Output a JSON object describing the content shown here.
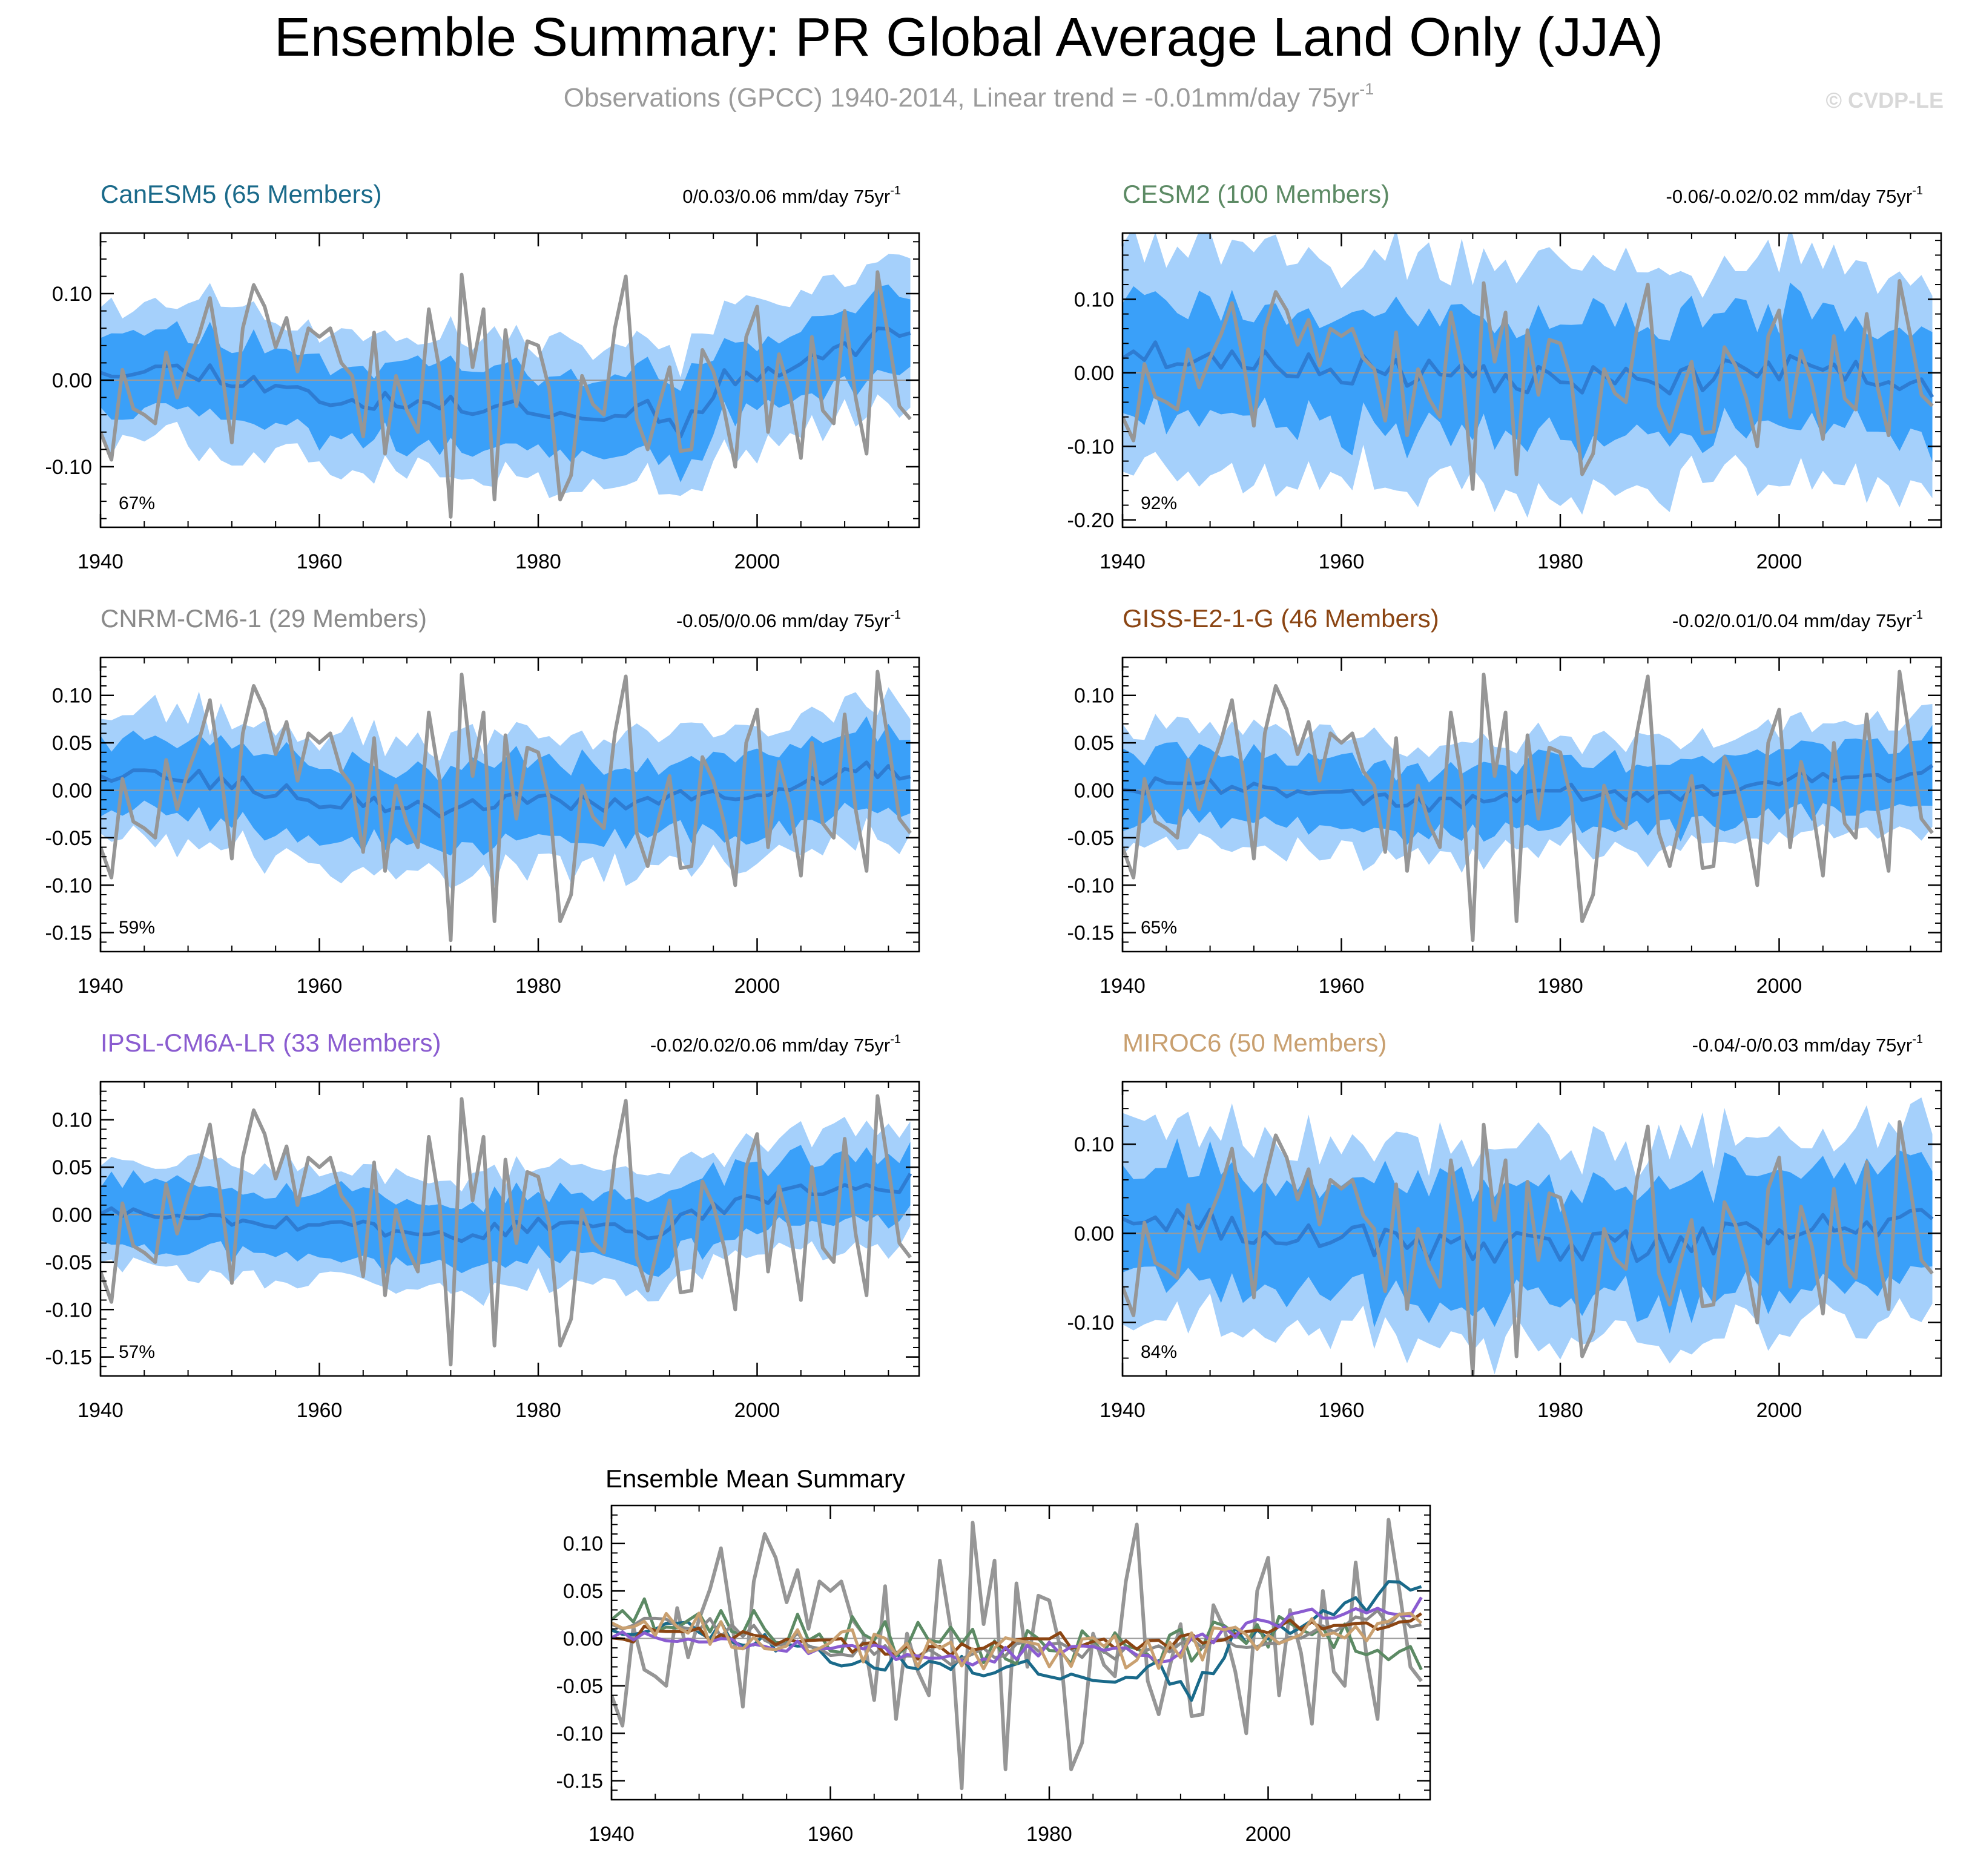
{
  "page": {
    "title": "Ensemble Summary: PR Global Average Land Only (JJA)",
    "subtitle_main": "Observations (GPCC) 1940-2014, Linear trend = -0.01mm/day 75yr",
    "subtitle_sup": "-1",
    "watermark": "© CVDP-LE"
  },
  "colors": {
    "outer_band": "#a5d0fb",
    "inner_band": "#3aa0f9",
    "ens_mean": "#2e7cd2",
    "obs": "#969696",
    "zero_line": "#9a9a9a",
    "axis": "#000000",
    "watermark": "#d8d8d8",
    "subtitle": "#9b9b9b"
  },
  "chart_data": [
    {
      "type": "line",
      "title": "CanESM5 (65 Members)",
      "title_color": "#1a6a8a",
      "trend_text": "0/0.03/0.06 mm/day 75yr",
      "trend_sup": "-1",
      "percent": "67%",
      "x_range": [
        1940,
        2014
      ],
      "ylim": [
        -0.17,
        0.17
      ],
      "yticks": [
        -0.1,
        0.0,
        0.1
      ],
      "ytick_labels": [
        "-0.10",
        "0.00",
        "0.10"
      ],
      "xticks": [
        1940,
        1960,
        1980,
        2000
      ],
      "xtick_labels": [
        "1940",
        "1960",
        "1980",
        "2000"
      ],
      "mean_anchors": [
        [
          1940,
          0.015
        ],
        [
          1950,
          0.01
        ],
        [
          1960,
          -0.02
        ],
        [
          1970,
          -0.03
        ],
        [
          1980,
          -0.03
        ],
        [
          1985,
          -0.045
        ],
        [
          1990,
          -0.03
        ],
        [
          1993,
          -0.055
        ],
        [
          1997,
          0.0
        ],
        [
          2003,
          0.02
        ],
        [
          2008,
          0.035
        ],
        [
          2014,
          0.065
        ]
      ],
      "inner_halfwidth": 0.045,
      "outer_halfwidth": 0.08,
      "noise": 0.012,
      "seed": 11
    },
    {
      "type": "line",
      "title": "CESM2 (100 Members)",
      "title_color": "#5c8a64",
      "trend_text": "-0.06/-0.02/0.02 mm/day 75yr",
      "trend_sup": "-1",
      "percent": "92%",
      "x_range": [
        1940,
        2014
      ],
      "ylim": [
        -0.21,
        0.19
      ],
      "yticks": [
        -0.2,
        -0.1,
        0.0,
        0.1
      ],
      "ytick_labels": [
        "-0.20",
        "-0.10",
        "0.00",
        "0.10"
      ],
      "xticks": [
        1940,
        1960,
        1980,
        2000
      ],
      "xtick_labels": [
        "1940",
        "1960",
        "1980",
        "2000"
      ],
      "mean_anchors": [
        [
          1940,
          0.03
        ],
        [
          1950,
          0.015
        ],
        [
          1960,
          0.005
        ],
        [
          1970,
          -0.005
        ],
        [
          1980,
          -0.01
        ],
        [
          1990,
          -0.01
        ],
        [
          2000,
          0.005
        ],
        [
          2010,
          0.0
        ],
        [
          2014,
          -0.02
        ]
      ],
      "inner_halfwidth": 0.08,
      "outer_halfwidth": 0.15,
      "noise": 0.02,
      "seed": 23
    },
    {
      "type": "line",
      "title": "CNRM-CM6-1 (29 Members)",
      "title_color": "#8a8a8a",
      "trend_text": "-0.05/0/0.06 mm/day 75yr",
      "trend_sup": "-1",
      "percent": "59%",
      "x_range": [
        1940,
        2014
      ],
      "ylim": [
        -0.17,
        0.14
      ],
      "yticks": [
        -0.15,
        -0.1,
        -0.05,
        0.0,
        0.05,
        0.1
      ],
      "ytick_labels": [
        "-0.15",
        "-0.10",
        "-0.05",
        "0.00",
        "0.05",
        "0.10"
      ],
      "xticks": [
        1940,
        1960,
        1980,
        2000
      ],
      "xtick_labels": [
        "1940",
        "1960",
        "1980",
        "2000"
      ],
      "mean_anchors": [
        [
          1940,
          0.02
        ],
        [
          1950,
          0.01
        ],
        [
          1960,
          -0.01
        ],
        [
          1970,
          -0.02
        ],
        [
          1980,
          -0.01
        ],
        [
          1990,
          -0.015
        ],
        [
          2000,
          0.0
        ],
        [
          2010,
          0.02
        ],
        [
          2014,
          0.015
        ]
      ],
      "inner_halfwidth": 0.04,
      "outer_halfwidth": 0.07,
      "noise": 0.01,
      "seed": 37
    },
    {
      "type": "line",
      "title": "GISS-E2-1-G (46 Members)",
      "title_color": "#8b4513",
      "trend_text": "-0.02/0.01/0.04 mm/day 75yr",
      "trend_sup": "-1",
      "percent": "65%",
      "x_range": [
        1940,
        2014
      ],
      "ylim": [
        -0.17,
        0.14
      ],
      "yticks": [
        -0.15,
        -0.1,
        -0.05,
        0.0,
        0.05,
        0.1
      ],
      "ytick_labels": [
        "-0.15",
        "-0.10",
        "-0.05",
        "0.00",
        "0.05",
        "0.10"
      ],
      "xticks": [
        1940,
        1960,
        1980,
        2000
      ],
      "xtick_labels": [
        "1940",
        "1960",
        "1980",
        "2000"
      ],
      "mean_anchors": [
        [
          1940,
          0.005
        ],
        [
          1950,
          0.005
        ],
        [
          1960,
          -0.005
        ],
        [
          1970,
          -0.015
        ],
        [
          1980,
          0.0
        ],
        [
          1990,
          -0.01
        ],
        [
          2000,
          0.01
        ],
        [
          2010,
          0.015
        ],
        [
          2014,
          0.02
        ]
      ],
      "inner_halfwidth": 0.035,
      "outer_halfwidth": 0.06,
      "noise": 0.009,
      "seed": 41
    },
    {
      "type": "line",
      "title": "IPSL-CM6A-LR (33 Members)",
      "title_color": "#8a5cd0",
      "trend_text": "-0.02/0.02/0.06 mm/day 75yr",
      "trend_sup": "-1",
      "percent": "57%",
      "x_range": [
        1940,
        2014
      ],
      "ylim": [
        -0.17,
        0.14
      ],
      "yticks": [
        -0.15,
        -0.1,
        -0.05,
        0.0,
        0.05,
        0.1
      ],
      "ytick_labels": [
        "-0.15",
        "-0.10",
        "-0.05",
        "0.00",
        "0.05",
        "0.10"
      ],
      "xticks": [
        1940,
        1960,
        1980,
        2000
      ],
      "xtick_labels": [
        "1940",
        "1960",
        "1980",
        "2000"
      ],
      "mean_anchors": [
        [
          1940,
          0.005
        ],
        [
          1950,
          0.0
        ],
        [
          1960,
          -0.01
        ],
        [
          1970,
          -0.025
        ],
        [
          1980,
          -0.01
        ],
        [
          1990,
          -0.02
        ],
        [
          2000,
          0.02
        ],
        [
          2010,
          0.025
        ],
        [
          2014,
          0.035
        ]
      ],
      "inner_halfwidth": 0.035,
      "outer_halfwidth": 0.06,
      "noise": 0.009,
      "seed": 53
    },
    {
      "type": "line",
      "title": "MIROC6 (50 Members)",
      "title_color": "#c9a070",
      "trend_text": "-0.04/-0/0.03 mm/day 75yr",
      "trend_sup": "-1",
      "percent": "84%",
      "x_range": [
        1940,
        2014
      ],
      "ylim": [
        -0.16,
        0.17
      ],
      "yticks": [
        -0.1,
        0.0,
        0.1
      ],
      "ytick_labels": [
        "-0.10",
        "0.00",
        "0.10"
      ],
      "xticks": [
        1940,
        1960,
        1980,
        2000
      ],
      "xtick_labels": [
        "1940",
        "1960",
        "1980",
        "2000"
      ],
      "mean_anchors": [
        [
          1940,
          0.025
        ],
        [
          1950,
          0.01
        ],
        [
          1960,
          -0.005
        ],
        [
          1970,
          -0.02
        ],
        [
          1980,
          -0.015
        ],
        [
          1990,
          -0.015
        ],
        [
          2000,
          0.005
        ],
        [
          2010,
          0.01
        ],
        [
          2014,
          0.025
        ]
      ],
      "inner_halfwidth": 0.065,
      "outer_halfwidth": 0.11,
      "noise": 0.018,
      "seed": 67
    },
    {
      "type": "line",
      "title": "Ensemble Mean Summary",
      "title_color": "#000000",
      "x_range": [
        1940,
        2014
      ],
      "ylim": [
        -0.17,
        0.14
      ],
      "yticks": [
        -0.15,
        -0.1,
        -0.05,
        0.0,
        0.05,
        0.1
      ],
      "ytick_labels": [
        "-0.15",
        "-0.10",
        "-0.05",
        "0.00",
        "0.05",
        "0.10"
      ],
      "xticks": [
        1940,
        1960,
        1980,
        2000
      ],
      "xtick_labels": [
        "1940",
        "1960",
        "1980",
        "2000"
      ],
      "series": [
        {
          "name": "CanESM5",
          "color": "#1a6a8a",
          "ref": 0
        },
        {
          "name": "CESM2",
          "color": "#5c8a64",
          "ref": 1
        },
        {
          "name": "CNRM-CM6-1",
          "color": "#8a8a8a",
          "ref": 2
        },
        {
          "name": "GISS-E2-1-G",
          "color": "#8b4513",
          "ref": 3
        },
        {
          "name": "IPSL-CM6A-LR",
          "color": "#8a5cd0",
          "ref": 4
        },
        {
          "name": "MIROC6",
          "color": "#c9a070",
          "ref": 5
        }
      ]
    }
  ],
  "observations": {
    "name": "Observations (GPCC)",
    "x_start": 1940,
    "values": [
      -0.06,
      -0.092,
      0.012,
      -0.033,
      -0.04,
      -0.05,
      0.032,
      -0.02,
      0.02,
      0.052,
      0.095,
      0.018,
      -0.072,
      0.06,
      0.11,
      0.085,
      0.038,
      0.072,
      0.01,
      0.06,
      0.05,
      0.06,
      0.02,
      0.005,
      -0.065,
      0.055,
      -0.085,
      0.005,
      -0.035,
      -0.06,
      0.082,
      0.01,
      -0.158,
      0.122,
      0.015,
      0.082,
      -0.138,
      0.058,
      -0.03,
      0.045,
      0.04,
      -0.01,
      -0.138,
      -0.11,
      0.005,
      -0.028,
      -0.04,
      0.06,
      0.12,
      -0.045,
      -0.08,
      -0.03,
      0.015,
      -0.082,
      -0.08,
      0.035,
      0.01,
      -0.035,
      -0.1,
      0.05,
      0.085,
      -0.06,
      0.03,
      -0.015,
      -0.09,
      0.05,
      -0.035,
      -0.05,
      0.08,
      -0.02,
      -0.085,
      0.125,
      0.05,
      -0.03,
      -0.045
    ]
  }
}
